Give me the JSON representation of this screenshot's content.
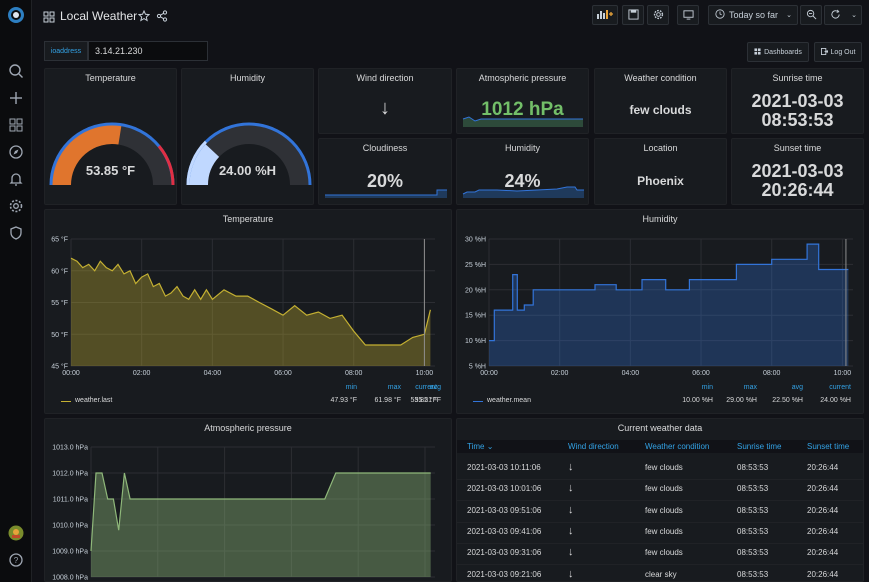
{
  "header": {
    "title": "Local Weather",
    "time_range": "Today so far"
  },
  "variables": {
    "label": "ioaddress",
    "value": "3.14.21.230"
  },
  "links": {
    "dashboards": "Dashboards",
    "logout": "Log Out"
  },
  "icons": [
    "grafana-logo-icon",
    "search-icon",
    "plus-icon",
    "dashboards-icon",
    "explore-icon",
    "alerting-icon",
    "settings-icon",
    "shield-icon",
    "avatar",
    "help-icon",
    "grid-icon",
    "star-icon",
    "share-icon",
    "add-panel-icon",
    "save-icon",
    "gear-icon",
    "tv-icon",
    "clock-icon",
    "zoom-out-icon",
    "refresh-icon"
  ],
  "stats": {
    "temperature": {
      "title": "Temperature",
      "value": "53.85 °F",
      "fraction": 0.55
    },
    "humidity": {
      "title": "Humidity",
      "value": "24.00 %H",
      "fraction": 0.24
    },
    "wind": {
      "title": "Wind direction",
      "value": "↓"
    },
    "pressure": {
      "title": "Atmospheric pressure",
      "value": "1012 hPa"
    },
    "condition": {
      "title": "Weather condition",
      "value": "few clouds"
    },
    "sunrise": {
      "title": "Sunrise time",
      "date": "2021-03-03",
      "time": "08:53:53"
    },
    "cloudiness": {
      "title": "Cloudiness",
      "value": "20%"
    },
    "humidity2": {
      "title": "Humidity",
      "value": "24%"
    },
    "location": {
      "title": "Location",
      "value": "Phoenix"
    },
    "sunset": {
      "title": "Sunset time",
      "date": "2021-03-03",
      "time": "20:26:44"
    }
  },
  "colors": {
    "accent": "#33a2e5",
    "green": "#73bf69",
    "temp_series": "#c4b032",
    "humidity_series": "#3274d9",
    "pressure_series": "#8fb87a"
  },
  "temp_panel": {
    "title": "Temperature",
    "legend": {
      "series": "weather.last",
      "min_label": "min",
      "max_label": "max",
      "avg_label": "avg",
      "current_label": "current",
      "min": "47.93 °F",
      "max": "61.98 °F",
      "avg": "55.21 °F",
      "current": "53.85 °F"
    }
  },
  "humidity_panel": {
    "title": "Humidity",
    "legend": {
      "series": "weather.mean",
      "min_label": "min",
      "max_label": "max",
      "avg_label": "avg",
      "current_label": "current",
      "min": "10.00 %H",
      "max": "29.00 %H",
      "avg": "22.50 %H",
      "current": "24.00 %H"
    }
  },
  "pressure_panel": {
    "title": "Atmospheric pressure"
  },
  "table_panel": {
    "title": "Current weather data",
    "columns": [
      "Time",
      "Wind direction",
      "Weather condition",
      "Sunrise time",
      "Sunset time"
    ],
    "rows": [
      [
        "2021-03-03 10:11:06",
        "↓",
        "few clouds",
        "08:53:53",
        "20:26:44"
      ],
      [
        "2021-03-03 10:01:06",
        "↓",
        "few clouds",
        "08:53:53",
        "20:26:44"
      ],
      [
        "2021-03-03 09:51:06",
        "↓",
        "few clouds",
        "08:53:53",
        "20:26:44"
      ],
      [
        "2021-03-03 09:41:06",
        "↓",
        "few clouds",
        "08:53:53",
        "20:26:44"
      ],
      [
        "2021-03-03 09:31:06",
        "↓",
        "few clouds",
        "08:53:53",
        "20:26:44"
      ],
      [
        "2021-03-03 09:21:06",
        "↓",
        "clear sky",
        "08:53:53",
        "20:26:44"
      ]
    ]
  },
  "chart_data": [
    {
      "type": "area",
      "title": "Temperature",
      "x_ticks": [
        "00:00",
        "02:00",
        "04:00",
        "06:00",
        "08:00",
        "10:00"
      ],
      "y_ticks": [
        "45 °F",
        "50 °F",
        "55 °F",
        "60 °F",
        "65 °F"
      ],
      "ylim": [
        45,
        65
      ],
      "xlim": [
        0,
        10.3
      ],
      "series": [
        {
          "name": "weather.last",
          "x": [
            0,
            0.17,
            0.33,
            0.5,
            0.67,
            0.83,
            1.0,
            1.17,
            1.33,
            1.5,
            1.67,
            1.83,
            2.0,
            2.17,
            2.33,
            2.5,
            2.67,
            2.83,
            3.0,
            3.17,
            3.33,
            3.5,
            3.67,
            3.83,
            4.0,
            4.33,
            4.67,
            5.0,
            5.33,
            5.67,
            6.0,
            6.33,
            6.67,
            7.0,
            7.33,
            7.67,
            8.0,
            8.33,
            8.67,
            9.0,
            9.33,
            9.67,
            10.0,
            10.17
          ],
          "y": [
            61.98,
            61.5,
            60.5,
            61,
            60,
            61.5,
            60.5,
            60,
            61,
            59.5,
            60,
            58,
            59,
            59.5,
            57.5,
            58,
            56,
            56.5,
            57.5,
            56,
            55.5,
            57,
            55.5,
            57,
            55.5,
            57,
            56,
            56,
            55,
            54,
            53,
            54.5,
            53,
            53.5,
            52.5,
            53,
            50.5,
            48.3,
            48.3,
            48.3,
            48.3,
            49.5,
            50,
            53.85
          ]
        }
      ]
    },
    {
      "type": "area",
      "title": "Humidity",
      "x_ticks": [
        "00:00",
        "02:00",
        "04:00",
        "06:00",
        "08:00",
        "10:00"
      ],
      "y_ticks": [
        "5 %H",
        "10 %H",
        "15 %H",
        "20 %H",
        "25 %H",
        "30 %H"
      ],
      "ylim": [
        5,
        30
      ],
      "xlim": [
        0,
        10.3
      ],
      "series": [
        {
          "name": "weather.mean",
          "x": [
            0,
            0.15,
            0.5,
            0.67,
            0.8,
            1.0,
            1.25,
            1.33,
            2.33,
            3.0,
            3.6,
            4.33,
            5.0,
            5.67,
            6.0,
            7.0,
            7.67,
            8.0,
            9.0,
            9.33,
            10.17
          ],
          "y": [
            10,
            16,
            16,
            23,
            16,
            17,
            20,
            20,
            20,
            21,
            20,
            22,
            20,
            22,
            22,
            25,
            25,
            26,
            29,
            24,
            24
          ]
        }
      ]
    },
    {
      "type": "area",
      "title": "Atmospheric pressure",
      "y_ticks": [
        "1008.0 hPa",
        "1009.0 hPa",
        "1010.0 hPa",
        "1011.0 hPa",
        "1012.0 hPa",
        "1013.0 hPa"
      ],
      "ylim": [
        1008,
        1013
      ],
      "xlim": [
        0,
        10.3
      ],
      "series": [
        {
          "name": "",
          "x": [
            0,
            0.15,
            0.33,
            0.5,
            0.67,
            0.83,
            1.0,
            1.17,
            1.33,
            2.33,
            7.0,
            7.33,
            8.0,
            9.0,
            10.17
          ],
          "y": [
            1009,
            1012,
            1012,
            1011,
            1011,
            1009.8,
            1012,
            1011,
            1011,
            1011,
            1011,
            1012,
            1012,
            1012,
            1012
          ]
        }
      ]
    }
  ]
}
